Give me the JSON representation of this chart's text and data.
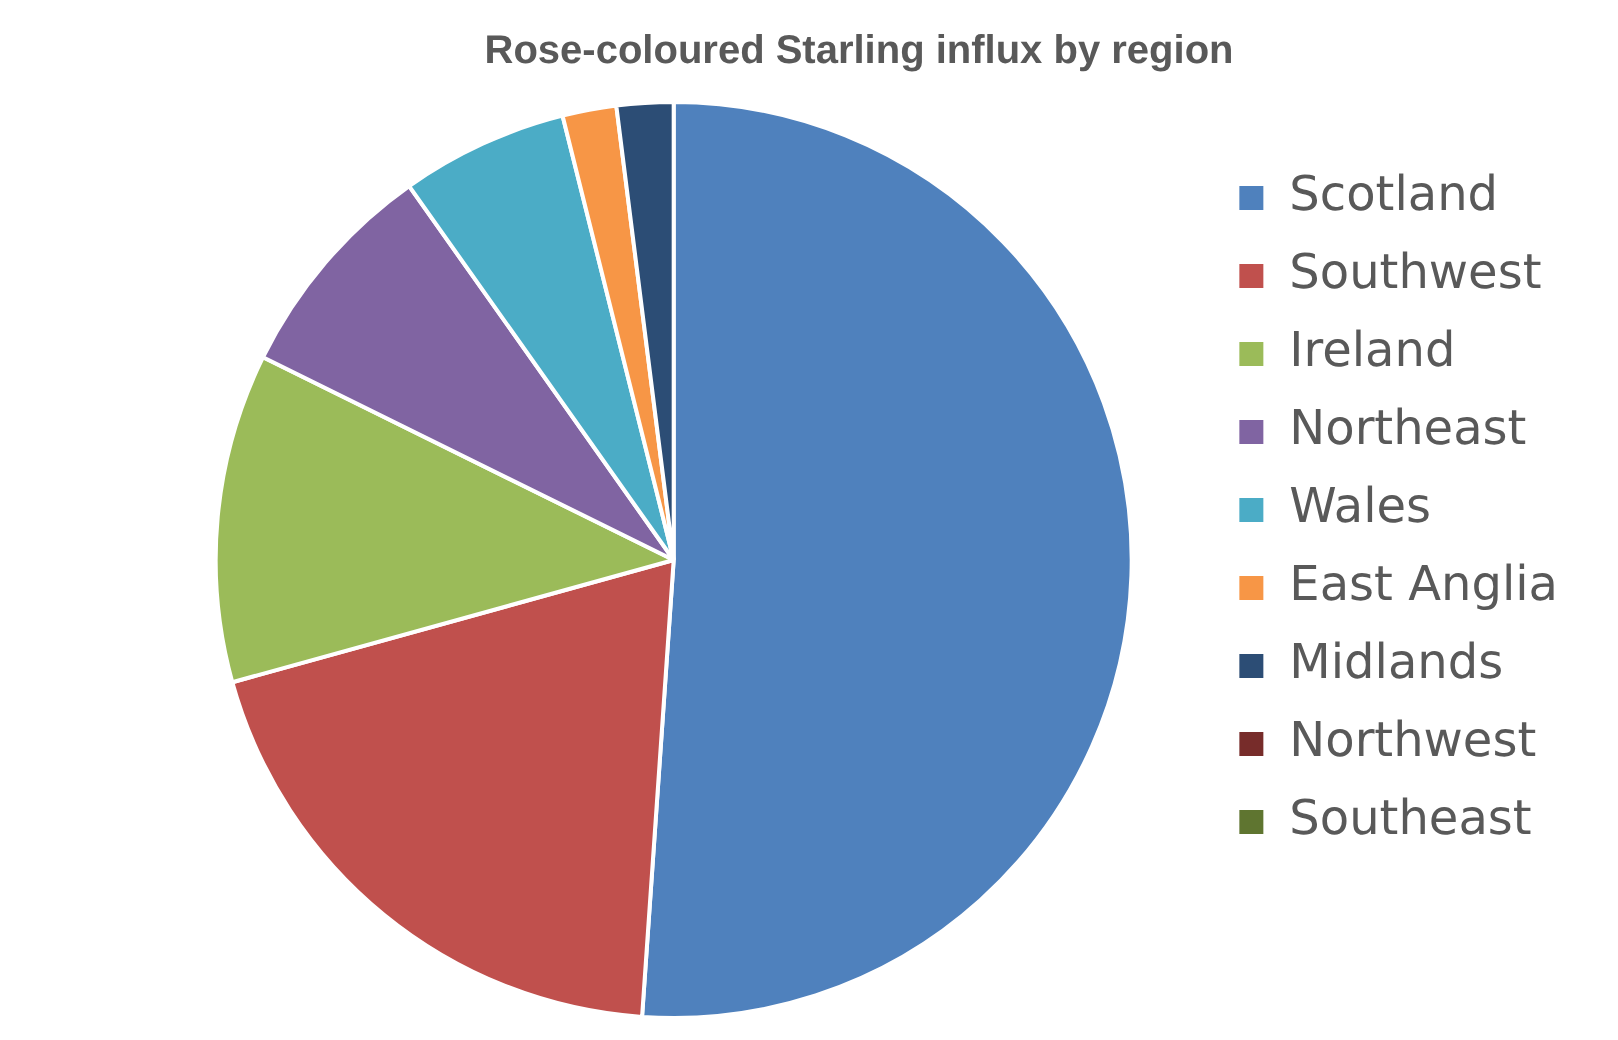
{
  "chart_data": {
    "type": "pie",
    "title": "Rose-coloured Starling influx by region",
    "categories": [
      "Scotland",
      "Southwest",
      "Ireland",
      "Northeast",
      "Wales",
      "East Anglia",
      "Midlands",
      "Northwest",
      "Southeast"
    ],
    "values": [
      51.1,
      19.6,
      11.6,
      7.9,
      5.9,
      1.9,
      2.0,
      0,
      0
    ],
    "colors": [
      "#4f81bd",
      "#c0504d",
      "#9bbb59",
      "#8064a2",
      "#4bacc6",
      "#f79646",
      "#2c4d75",
      "#772c2a",
      "#5f7530"
    ],
    "legend": "right"
  }
}
